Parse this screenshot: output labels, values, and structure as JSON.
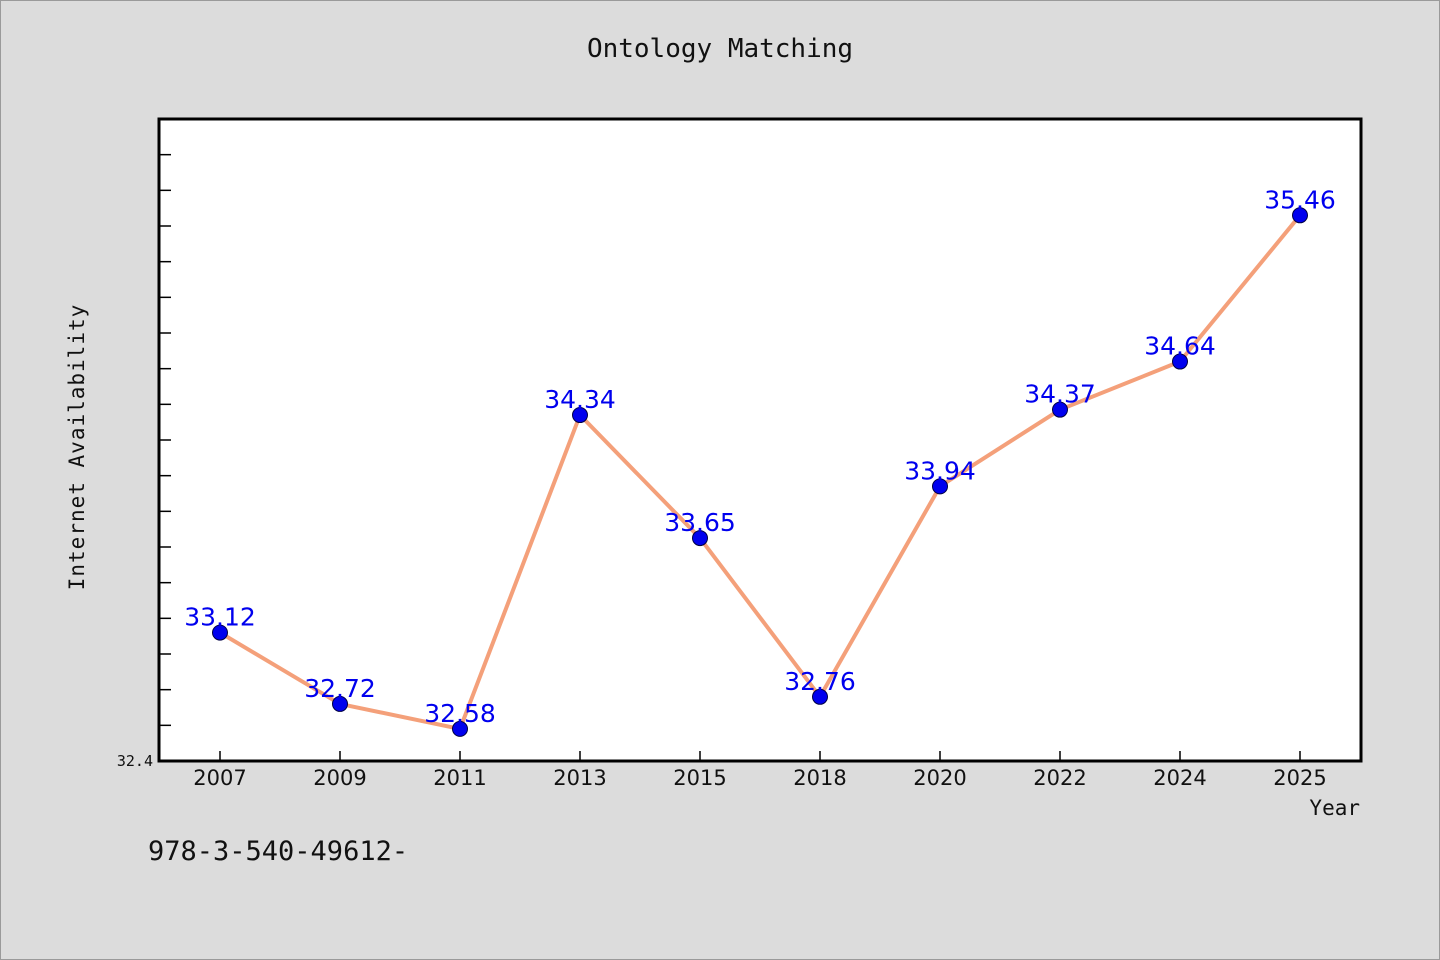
{
  "chart_data": {
    "type": "line",
    "title": "Ontology Matching",
    "xlabel": "Year",
    "ylabel": "Internet Availability",
    "categories": [
      "2007",
      "2009",
      "2011",
      "2013",
      "2015",
      "2018",
      "2020",
      "2022",
      "2024",
      "2025"
    ],
    "series": [
      {
        "values": [
          33.12,
          32.72,
          32.58,
          34.34,
          33.65,
          32.76,
          33.94,
          34.37,
          34.64,
          35.46
        ],
        "labels": [
          "33.12",
          "32.72",
          "32.58",
          "34.34",
          "33.65",
          "32.76",
          "33.94",
          "34.37",
          "34.64",
          "35.46"
        ]
      }
    ],
    "ylim": [
      32.4,
      36.0
    ],
    "ytick_labels": [
      "32.4"
    ],
    "grid": false,
    "line_color": "#f4a07a",
    "marker_color": "#0000ee",
    "label_color": "#0000ee"
  },
  "footnote": "978-3-540-49612-"
}
